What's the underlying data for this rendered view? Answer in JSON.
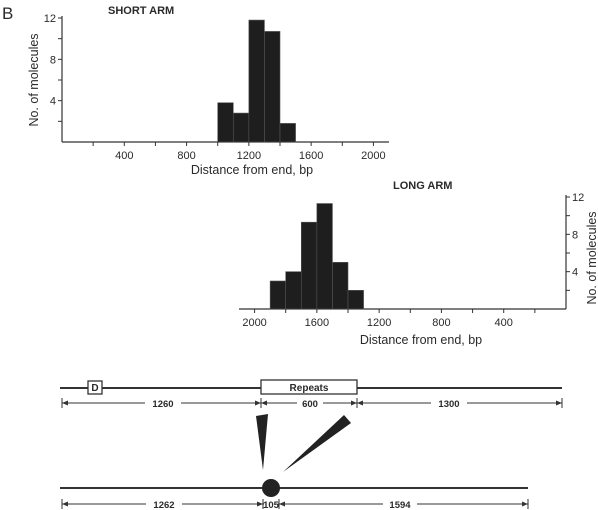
{
  "panel_label": "B",
  "chart_data": [
    {
      "type": "bar",
      "title": "SHORT ARM",
      "xlabel": "Distance from end, bp",
      "ylabel": "No. of molecules",
      "xlim": [
        0,
        2100
      ],
      "ylim": [
        0,
        12
      ],
      "xticks": [
        400,
        800,
        1200,
        1600,
        2000
      ],
      "yticks": [
        4,
        8,
        12
      ],
      "bin_width": 100,
      "bins": [
        1000,
        1100,
        1200,
        1300,
        1400
      ],
      "values": [
        3.8,
        2.8,
        11.8,
        10.7,
        1.8
      ]
    },
    {
      "type": "bar",
      "title": "LONG ARM",
      "xlabel": "Distance from end, bp",
      "ylabel": "No. of molecules",
      "x_axis_reversed": true,
      "xlim": [
        2100,
        0
      ],
      "ylim": [
        0,
        12
      ],
      "xticks": [
        2000,
        1600,
        1200,
        800,
        400
      ],
      "yticks": [
        4,
        8,
        12
      ],
      "bin_width": 100,
      "bins": [
        1800,
        1700,
        1600,
        1500,
        1400,
        1300
      ],
      "values": [
        3.0,
        4.0,
        9.3,
        11.3,
        5.0,
        2.0
      ]
    }
  ],
  "diagram": {
    "top_line": {
      "box_d_label": "D",
      "repeats_label": "Repeats",
      "segments": [
        "1260",
        "600",
        "1300"
      ]
    },
    "bottom_line": {
      "segments": [
        "1262",
        "105",
        "1594"
      ]
    }
  }
}
